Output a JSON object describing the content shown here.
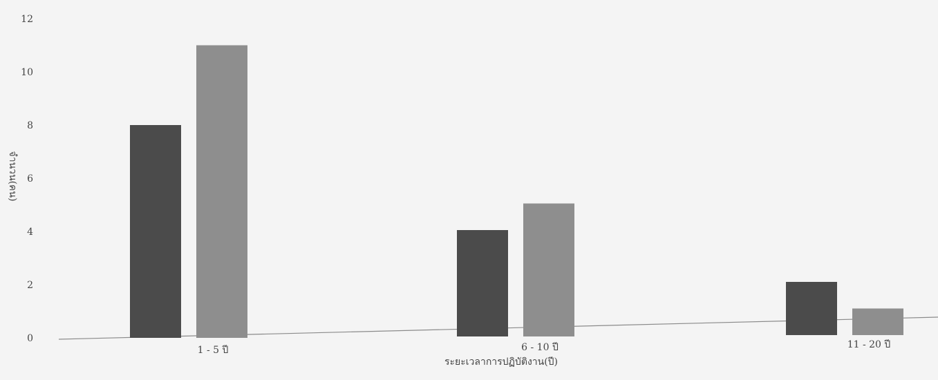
{
  "chart_data": {
    "type": "bar",
    "categories": [
      "1 - 5 ปี",
      "6 - 10 ปี",
      "11 - 20 ปี"
    ],
    "series": [
      {
        "values": [
          8,
          4,
          2
        ]
      },
      {
        "values": [
          11,
          5,
          1
        ]
      }
    ],
    "xlabel": "ระยะเวลาการปฏิบัติงาน(ปี)",
    "ylabel": "จำนวน(คน)",
    "ylim": [
      0,
      12
    ],
    "yticks": [
      0,
      2,
      4,
      6,
      8,
      10,
      12
    ],
    "grid": false,
    "colors": {
      "series_1": "#4b4b4b",
      "series_2": "#8e8e8e",
      "axis": "#8a8a8a",
      "background": "#f4f4f4"
    }
  }
}
